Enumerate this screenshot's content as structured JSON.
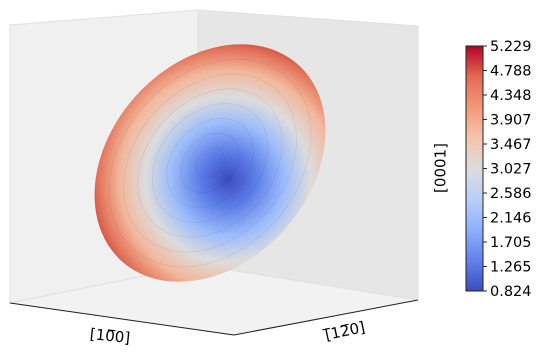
{
  "chart_data": {
    "type": "3d-surface",
    "surface": "ellipsoid",
    "colormap": "coolwarm",
    "grid": false,
    "x_axis_label": "[10̅0]",
    "y_axis_label": "[̅12̅0]",
    "colorbar": {
      "label": "[0001]",
      "min": 0.824,
      "max": 5.229,
      "ticks": [
        "5.229",
        "4.788",
        "4.348",
        "3.907",
        "3.467",
        "3.027",
        "2.586",
        "2.146",
        "1.705",
        "1.265",
        "0.824"
      ],
      "colors": [
        "#3b4cc0",
        "#6282ea",
        "#8db0fe",
        "#b8d0f9",
        "#dddcdc",
        "#f5c4ac",
        "#f4987a",
        "#e36a53",
        "#b40426"
      ]
    }
  }
}
